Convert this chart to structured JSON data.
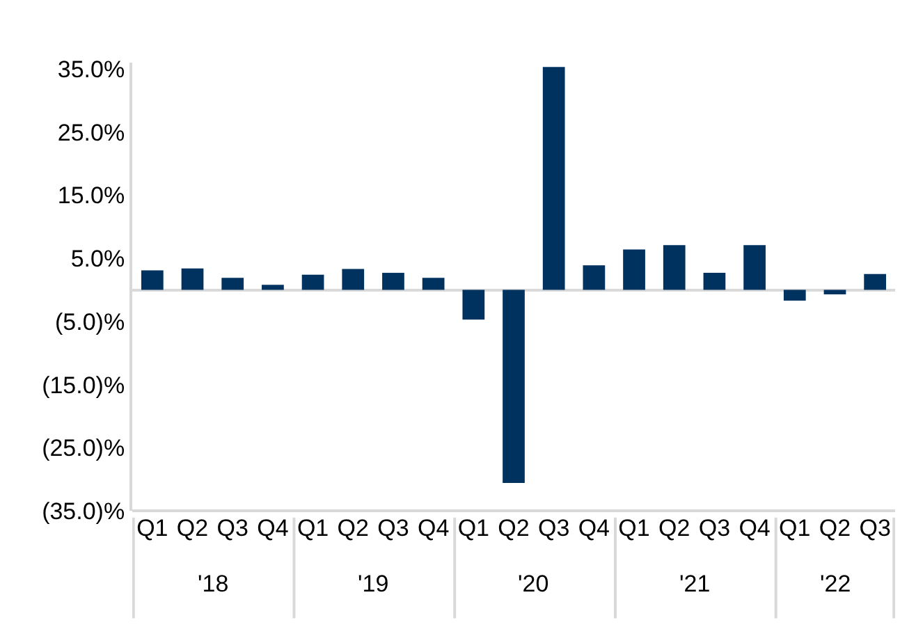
{
  "chart_data": {
    "type": "bar",
    "categories": [
      "Q1",
      "Q2",
      "Q3",
      "Q4",
      "Q1",
      "Q2",
      "Q3",
      "Q4",
      "Q1",
      "Q2",
      "Q3",
      "Q4",
      "Q1",
      "Q2",
      "Q3",
      "Q4",
      "Q1",
      "Q2",
      "Q3"
    ],
    "values": [
      3.1,
      3.4,
      1.9,
      0.8,
      2.4,
      3.3,
      2.7,
      1.9,
      -4.7,
      -30.6,
      35.3,
      3.9,
      6.4,
      7.1,
      2.7,
      7.1,
      -1.7,
      -0.7,
      2.5
    ],
    "color": "#00325f",
    "ylim": [
      -35,
      36
    ],
    "yticks": [
      {
        "value": 35,
        "label": "35.0%"
      },
      {
        "value": 25,
        "label": "25.0%"
      },
      {
        "value": 15,
        "label": "15.0%"
      },
      {
        "value": 5,
        "label": "5.0%"
      },
      {
        "value": -5,
        "label": "(5.0)%"
      },
      {
        "value": -15,
        "label": "(15.0)%"
      },
      {
        "value": -25,
        "label": "(25.0)%"
      },
      {
        "value": -35,
        "label": "(35.0)%"
      }
    ],
    "annotations": [
      "'18",
      "'19",
      "'20",
      "'21",
      "'22"
    ]
  }
}
